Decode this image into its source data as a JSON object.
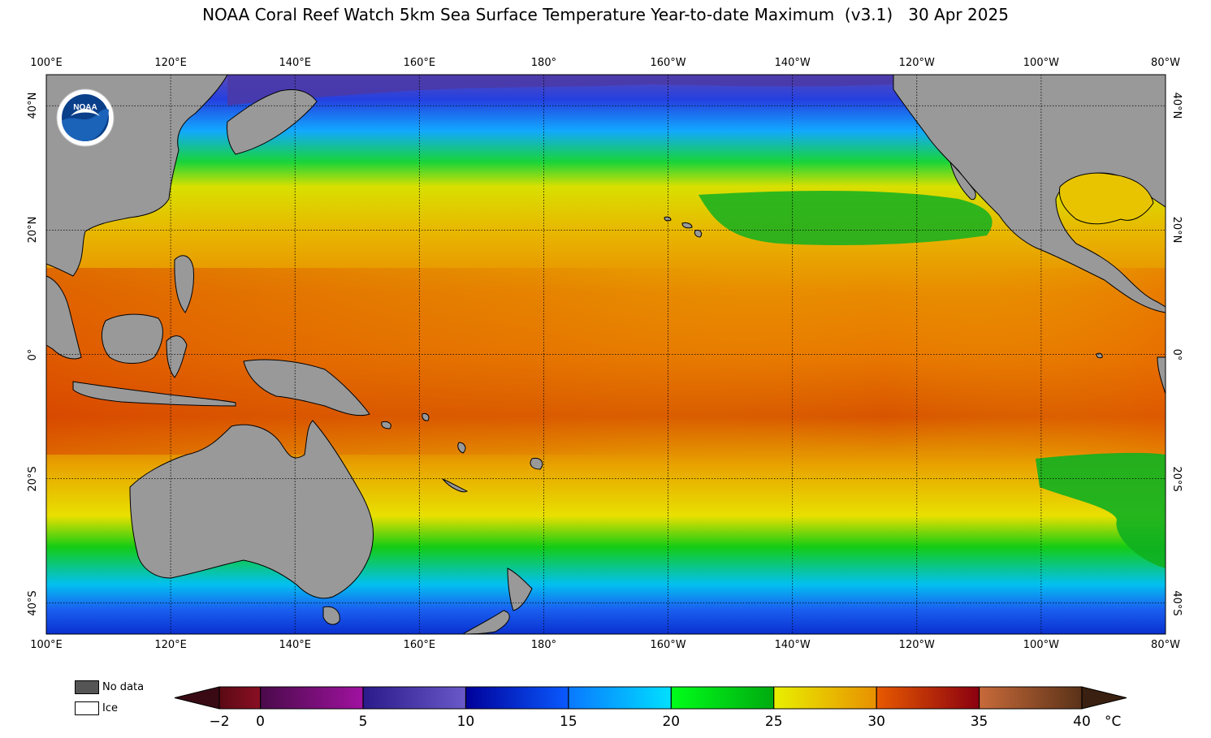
{
  "title": "NOAA Coral Reef Watch 5km Sea Surface Temperature Year-to-date Maximum  (v3.1)   30 Apr 2025",
  "longitude_ticks": [
    {
      "label": "100°E",
      "lon": 100
    },
    {
      "label": "120°E",
      "lon": 120
    },
    {
      "label": "140°E",
      "lon": 140
    },
    {
      "label": "160°E",
      "lon": 160
    },
    {
      "label": "180°",
      "lon": 180
    },
    {
      "label": "160°W",
      "lon": 200
    },
    {
      "label": "140°W",
      "lon": 220
    },
    {
      "label": "120°W",
      "lon": 240
    },
    {
      "label": "100°W",
      "lon": 260
    },
    {
      "label": "80°W",
      "lon": 280
    }
  ],
  "latitude_ticks": [
    {
      "label": "40°N",
      "lat": 40
    },
    {
      "label": "20°N",
      "lat": 20
    },
    {
      "label": "0°",
      "lat": 0
    },
    {
      "label": "20°S",
      "lat": -20
    },
    {
      "label": "40°S",
      "lat": -40
    }
  ],
  "map_extent": {
    "lon_min": 100,
    "lon_max": 280,
    "lat_min": -45,
    "lat_max": 45
  },
  "logo": {
    "text": "NOAA",
    "colors": {
      "outer": "#ffffff",
      "inner": "#0a3f8a",
      "lower": "#1a63b8"
    }
  },
  "legend": {
    "no_data": {
      "label": "No data",
      "color": "#555555"
    },
    "ice": {
      "label": "Ice",
      "color": "#ffffff"
    }
  },
  "colorbar": {
    "min": -2,
    "max": 40,
    "unit": "°C",
    "tick_labels": [
      "−2",
      "0",
      "5",
      "10",
      "15",
      "20",
      "25",
      "30",
      "35",
      "40"
    ],
    "tick_values": [
      -2,
      0,
      5,
      10,
      15,
      20,
      25,
      30,
      35,
      40
    ],
    "under_color": "#3a0a14",
    "over_color": "#3a2010",
    "segments": [
      {
        "from": -2,
        "to": 0,
        "start": "#5a0a14",
        "end": "#8a0f24"
      },
      {
        "from": 0,
        "to": 5,
        "start": "#4a0a4a",
        "end": "#a012a0"
      },
      {
        "from": 5,
        "to": 10,
        "start": "#2a1a8a",
        "end": "#6a5ac8"
      },
      {
        "from": 10,
        "to": 15,
        "start": "#00009a",
        "end": "#0a5aff"
      },
      {
        "from": 15,
        "to": 20,
        "start": "#0a78ff",
        "end": "#00e0ff"
      },
      {
        "from": 20,
        "to": 25,
        "start": "#00ff1a",
        "end": "#00aa10"
      },
      {
        "from": 25,
        "to": 30,
        "start": "#e8f000",
        "end": "#e89000"
      },
      {
        "from": 30,
        "to": 35,
        "start": "#e85a00",
        "end": "#8a0010"
      },
      {
        "from": 35,
        "to": 40,
        "start": "#c86a3a",
        "end": "#5a3218"
      }
    ]
  },
  "colors": {
    "land": "#999999",
    "grid": "#000000",
    "sst_bands": [
      {
        "lat": 45,
        "color": "#5a4ab8"
      },
      {
        "lat": 41,
        "color": "#2440e0"
      },
      {
        "lat": 36,
        "color": "#12a8ff"
      },
      {
        "lat": 31,
        "color": "#18d43a"
      },
      {
        "lat": 27,
        "color": "#d8e000"
      },
      {
        "lat": 20,
        "color": "#e8b800"
      },
      {
        "lat": 10,
        "color": "#e88a00"
      },
      {
        "lat": 0,
        "color": "#e87800"
      },
      {
        "lat": -10,
        "color": "#d85400"
      },
      {
        "lat": -18,
        "color": "#e8a400"
      },
      {
        "lat": -26,
        "color": "#e8e000"
      },
      {
        "lat": -31,
        "color": "#14cc14"
      },
      {
        "lat": -37,
        "color": "#02c0f0"
      },
      {
        "lat": -41,
        "color": "#1a60f0"
      },
      {
        "lat": -45,
        "color": "#0a30d0"
      }
    ]
  }
}
